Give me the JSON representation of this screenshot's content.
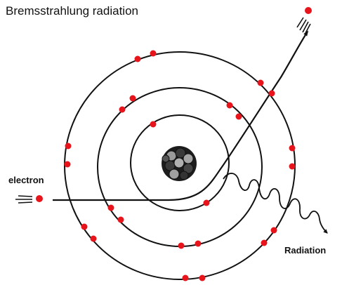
{
  "title": "Bremsstrahlung radiation",
  "labels": {
    "electron": "electron",
    "radiation": "Radiation"
  },
  "colors": {
    "electron_dot": "#e8141c",
    "orbit_line": "#111111",
    "nucleus_dark": "#222222",
    "nucleus_light": "#9a9a9a"
  }
}
